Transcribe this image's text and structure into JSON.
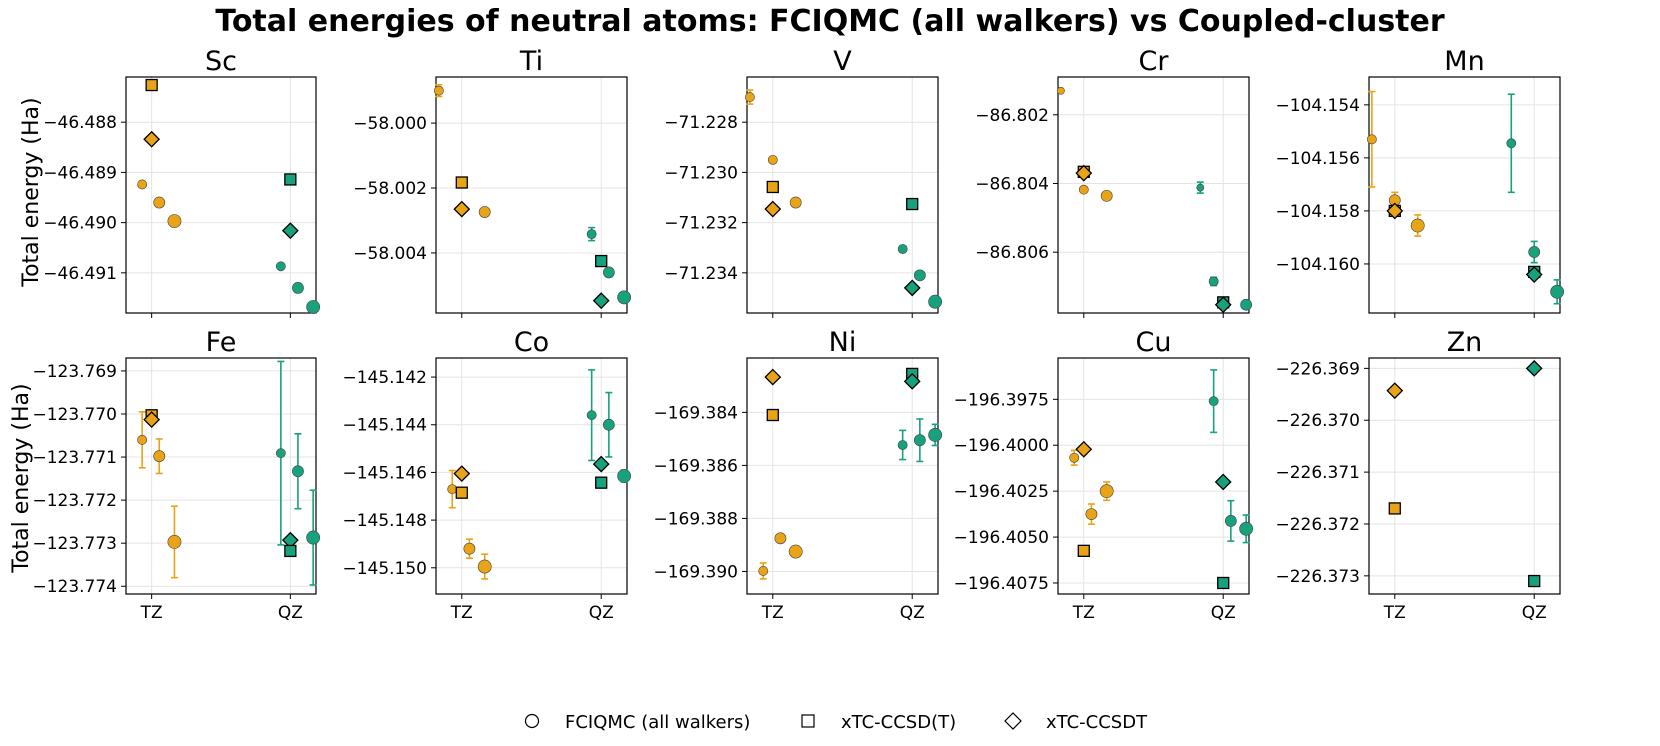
{
  "title": "Total energies of neutral atoms: FCIQMC (all walkers) vs Coupled-cluster",
  "ylabel": "Total energy (Ha)",
  "colors": {
    "TZ": "#E8A317",
    "QZ": "#17A17D"
  },
  "legend": [
    {
      "label": "FCIQMC (all walkers)",
      "marker": "circle"
    },
    {
      "label": "xTC-CCSD(T)",
      "marker": "square"
    },
    {
      "label": "xTC-CCSDT",
      "marker": "diamond"
    }
  ],
  "chart_data": [
    {
      "type": "scatter",
      "title": "Sc",
      "categories": [
        "TZ",
        "QZ"
      ],
      "ylim": [
        -46.4918,
        -46.4871
      ],
      "yticks": [
        -46.488,
        -46.489,
        -46.49,
        -46.491
      ],
      "tick_labels": [
        "−46.488",
        "−46.489",
        "−46.490",
        "−46.491"
      ],
      "points": [
        {
          "basis": "TZ",
          "method": "fciqmc",
          "x_offset": -0.05,
          "y": -46.48924,
          "size": "small"
        },
        {
          "basis": "TZ",
          "method": "fciqmc",
          "x_offset": 0.04,
          "y": -46.4896,
          "size": "medium"
        },
        {
          "basis": "TZ",
          "method": "fciqmc",
          "x_offset": 0.12,
          "y": -46.48997,
          "size": "large"
        },
        {
          "basis": "TZ",
          "method": "ccsd_t",
          "x_offset": 0.0,
          "y": -46.48726
        },
        {
          "basis": "TZ",
          "method": "ccsdt",
          "x_offset": 0.0,
          "y": -46.48834
        },
        {
          "basis": "QZ",
          "method": "fciqmc",
          "x_offset": -0.05,
          "y": -46.49087,
          "size": "small"
        },
        {
          "basis": "QZ",
          "method": "fciqmc",
          "x_offset": 0.04,
          "y": -46.4913,
          "size": "medium"
        },
        {
          "basis": "QZ",
          "method": "fciqmc",
          "x_offset": 0.12,
          "y": -46.49168,
          "size": "large"
        },
        {
          "basis": "QZ",
          "method": "ccsd_t",
          "x_offset": 0.0,
          "y": -46.48914
        },
        {
          "basis": "QZ",
          "method": "ccsdt",
          "x_offset": 0.0,
          "y": -46.49016
        }
      ]
    },
    {
      "type": "scatter",
      "title": "Ti",
      "categories": [
        "TZ",
        "QZ"
      ],
      "ylim": [
        -58.00585,
        -57.99858
      ],
      "yticks": [
        -58.0,
        -58.002,
        -58.004
      ],
      "tick_labels": [
        "−58.000",
        "−58.002",
        "−58.004"
      ],
      "points": [
        {
          "basis": "TZ",
          "method": "fciqmc",
          "x_offset": -0.12,
          "y": -57.999,
          "err": 0.00018,
          "size": "small"
        },
        {
          "basis": "TZ",
          "method": "ccsd_t",
          "x_offset": 0.0,
          "y": -58.00183
        },
        {
          "basis": "TZ",
          "method": "ccsdt",
          "x_offset": 0.0,
          "y": -58.00265
        },
        {
          "basis": "TZ",
          "method": "fciqmc",
          "x_offset": 0.12,
          "y": -58.00274,
          "size": "medium"
        },
        {
          "basis": "QZ",
          "method": "fciqmc",
          "x_offset": -0.05,
          "y": -58.00342,
          "err": 0.0002,
          "size": "small"
        },
        {
          "basis": "QZ",
          "method": "ccsd_t",
          "x_offset": 0.0,
          "y": -58.00425
        },
        {
          "basis": "QZ",
          "method": "fciqmc",
          "x_offset": 0.04,
          "y": -58.0046,
          "size": "medium"
        },
        {
          "basis": "QZ",
          "method": "ccsdt",
          "x_offset": 0.0,
          "y": -58.00547
        },
        {
          "basis": "QZ",
          "method": "fciqmc",
          "x_offset": 0.12,
          "y": -58.00537,
          "size": "large"
        }
      ]
    },
    {
      "type": "scatter",
      "title": "V",
      "categories": [
        "TZ",
        "QZ"
      ],
      "ylim": [
        -71.2356,
        -71.2262
      ],
      "yticks": [
        -71.228,
        -71.23,
        -71.232,
        -71.234
      ],
      "tick_labels": [
        "−71.228",
        "−71.230",
        "−71.232",
        "−71.234"
      ],
      "points": [
        {
          "basis": "TZ",
          "method": "fciqmc",
          "x_offset": -0.12,
          "y": -71.227,
          "err": 0.00028,
          "size": "small"
        },
        {
          "basis": "TZ",
          "method": "fciqmc",
          "x_offset": 0.0,
          "y": -71.2295,
          "size": "small"
        },
        {
          "basis": "TZ",
          "method": "ccsd_t",
          "x_offset": 0.0,
          "y": -71.23058
        },
        {
          "basis": "TZ",
          "method": "fciqmc",
          "x_offset": 0.12,
          "y": -71.2312,
          "size": "medium"
        },
        {
          "basis": "TZ",
          "method": "ccsdt",
          "x_offset": 0.0,
          "y": -71.23146
        },
        {
          "basis": "QZ",
          "method": "ccsd_t",
          "x_offset": 0.0,
          "y": -71.23126
        },
        {
          "basis": "QZ",
          "method": "fciqmc",
          "x_offset": -0.05,
          "y": -71.23305,
          "size": "small"
        },
        {
          "basis": "QZ",
          "method": "fciqmc",
          "x_offset": 0.04,
          "y": -71.2341,
          "size": "medium"
        },
        {
          "basis": "QZ",
          "method": "ccsdt",
          "x_offset": 0.0,
          "y": -71.2346
        },
        {
          "basis": "QZ",
          "method": "fciqmc",
          "x_offset": 0.12,
          "y": -71.23515,
          "size": "large"
        }
      ]
    },
    {
      "type": "scatter",
      "title": "Cr",
      "categories": [
        "TZ",
        "QZ"
      ],
      "ylim": [
        -86.80777,
        -86.8009
      ],
      "yticks": [
        -86.802,
        -86.804,
        -86.806
      ],
      "tick_labels": [
        "−86.802",
        "−86.804",
        "−86.806"
      ],
      "points": [
        {
          "basis": "TZ",
          "method": "fciqmc",
          "x_offset": -0.12,
          "y": -86.8013,
          "size": "tiny"
        },
        {
          "basis": "TZ",
          "method": "ccsd_t",
          "x_offset": 0.0,
          "y": -86.80366
        },
        {
          "basis": "TZ",
          "method": "ccsdt",
          "x_offset": 0.0,
          "y": -86.8037
        },
        {
          "basis": "TZ",
          "method": "fciqmc",
          "x_offset": 0.0,
          "y": -86.80418,
          "size": "small"
        },
        {
          "basis": "TZ",
          "method": "fciqmc",
          "x_offset": 0.12,
          "y": -86.80436,
          "size": "medium"
        },
        {
          "basis": "QZ",
          "method": "fciqmc",
          "x_offset": -0.12,
          "y": -86.80412,
          "err": 0.00016,
          "size": "tiny"
        },
        {
          "basis": "QZ",
          "method": "fciqmc",
          "x_offset": -0.05,
          "y": -86.80685,
          "err": 0.00012,
          "size": "small"
        },
        {
          "basis": "QZ",
          "method": "ccsd_t",
          "x_offset": 0.0,
          "y": -86.80746
        },
        {
          "basis": "QZ",
          "method": "ccsdt",
          "x_offset": 0.0,
          "y": -86.80753
        },
        {
          "basis": "QZ",
          "method": "fciqmc",
          "x_offset": 0.12,
          "y": -86.80753,
          "size": "medium"
        }
      ]
    },
    {
      "type": "scatter",
      "title": "Mn",
      "categories": [
        "TZ",
        "QZ"
      ],
      "ylim": [
        -104.16185,
        -104.15295
      ],
      "yticks": [
        -104.154,
        -104.156,
        -104.158,
        -104.16
      ],
      "tick_labels": [
        "−104.154",
        "−104.156",
        "−104.158",
        "−104.160"
      ],
      "points": [
        {
          "basis": "TZ",
          "method": "fciqmc",
          "x_offset": -0.12,
          "y": -104.1553,
          "err": 0.0018,
          "size": "small"
        },
        {
          "basis": "TZ",
          "method": "fciqmc",
          "x_offset": 0.0,
          "y": -104.1576,
          "err": 0.0003,
          "size": "medium"
        },
        {
          "basis": "TZ",
          "method": "ccsd_t",
          "x_offset": 0.0,
          "y": -104.158
        },
        {
          "basis": "TZ",
          "method": "ccsdt",
          "x_offset": 0.0,
          "y": -104.158
        },
        {
          "basis": "TZ",
          "method": "fciqmc",
          "x_offset": 0.12,
          "y": -104.15855,
          "err": 0.0004,
          "size": "large"
        },
        {
          "basis": "QZ",
          "method": "fciqmc",
          "x_offset": -0.12,
          "y": -104.15545,
          "err": 0.00185,
          "size": "small"
        },
        {
          "basis": "QZ",
          "method": "fciqmc",
          "x_offset": 0.0,
          "y": -104.15955,
          "err": 0.0004,
          "size": "medium"
        },
        {
          "basis": "QZ",
          "method": "ccsd_t",
          "x_offset": 0.0,
          "y": -104.1603
        },
        {
          "basis": "QZ",
          "method": "ccsdt",
          "x_offset": 0.0,
          "y": -104.1604
        },
        {
          "basis": "QZ",
          "method": "fciqmc",
          "x_offset": 0.12,
          "y": -104.16105,
          "err": 0.00045,
          "size": "large"
        }
      ]
    },
    {
      "type": "scatter",
      "title": "Fe",
      "categories": [
        "TZ",
        "QZ"
      ],
      "ylim": [
        -123.77418,
        -123.7687
      ],
      "yticks": [
        -123.769,
        -123.77,
        -123.771,
        -123.772,
        -123.773,
        -123.774
      ],
      "tick_labels": [
        "−123.769",
        "−123.770",
        "−123.771",
        "−123.772",
        "−123.773",
        "−123.774"
      ],
      "points": [
        {
          "basis": "TZ",
          "method": "fciqmc",
          "x_offset": -0.05,
          "y": -123.7706,
          "err": 0.00065,
          "size": "small"
        },
        {
          "basis": "TZ",
          "method": "ccsd_t",
          "x_offset": 0.0,
          "y": -123.77003
        },
        {
          "basis": "TZ",
          "method": "ccsdt",
          "x_offset": 0.0,
          "y": -123.77013
        },
        {
          "basis": "TZ",
          "method": "fciqmc",
          "x_offset": 0.04,
          "y": -123.77098,
          "err": 0.0004,
          "size": "medium"
        },
        {
          "basis": "TZ",
          "method": "fciqmc",
          "x_offset": 0.12,
          "y": -123.77297,
          "err": 0.00083,
          "size": "large"
        },
        {
          "basis": "QZ",
          "method": "fciqmc",
          "x_offset": -0.05,
          "y": -123.77091,
          "err": 0.00213,
          "size": "small"
        },
        {
          "basis": "QZ",
          "method": "fciqmc",
          "x_offset": 0.04,
          "y": -123.77133,
          "err": 0.00087,
          "size": "medium"
        },
        {
          "basis": "QZ",
          "method": "ccsdt",
          "x_offset": 0.0,
          "y": -123.77293
        },
        {
          "basis": "QZ",
          "method": "ccsd_t",
          "x_offset": 0.0,
          "y": -123.77318
        },
        {
          "basis": "QZ",
          "method": "fciqmc",
          "x_offset": 0.12,
          "y": -123.77287,
          "err": 0.0011,
          "size": "large"
        }
      ]
    },
    {
      "type": "scatter",
      "title": "Co",
      "categories": [
        "TZ",
        "QZ"
      ],
      "ylim": [
        -145.1511,
        -145.1412
      ],
      "yticks": [
        -145.142,
        -145.144,
        -145.146,
        -145.148,
        -145.15
      ],
      "tick_labels": [
        "−145.142",
        "−145.144",
        "−145.146",
        "−145.148",
        "−145.150"
      ],
      "points": [
        {
          "basis": "TZ",
          "method": "fciqmc",
          "x_offset": -0.05,
          "y": -145.1467,
          "err": 0.00078,
          "size": "small"
        },
        {
          "basis": "TZ",
          "method": "ccsdt",
          "x_offset": 0.0,
          "y": -145.14605
        },
        {
          "basis": "TZ",
          "method": "ccsd_t",
          "x_offset": 0.0,
          "y": -145.14685
        },
        {
          "basis": "TZ",
          "method": "fciqmc",
          "x_offset": 0.04,
          "y": -145.1492,
          "err": 0.0004,
          "size": "medium"
        },
        {
          "basis": "TZ",
          "method": "fciqmc",
          "x_offset": 0.12,
          "y": -145.14995,
          "err": 0.00052,
          "size": "large"
        },
        {
          "basis": "QZ",
          "method": "fciqmc",
          "x_offset": -0.05,
          "y": -145.1436,
          "err": 0.0019,
          "size": "small"
        },
        {
          "basis": "QZ",
          "method": "fciqmc",
          "x_offset": 0.04,
          "y": -145.144,
          "err": 0.00135,
          "size": "medium"
        },
        {
          "basis": "QZ",
          "method": "ccsdt",
          "x_offset": 0.0,
          "y": -145.14565
        },
        {
          "basis": "QZ",
          "method": "ccsd_t",
          "x_offset": 0.0,
          "y": -145.14643
        },
        {
          "basis": "QZ",
          "method": "fciqmc",
          "x_offset": 0.12,
          "y": -145.14615,
          "err": 0.00025,
          "size": "large"
        }
      ]
    },
    {
      "type": "scatter",
      "title": "Ni",
      "categories": [
        "TZ",
        "QZ"
      ],
      "ylim": [
        -169.39085,
        -169.38195
      ],
      "yticks": [
        -169.384,
        -169.386,
        -169.388,
        -169.39
      ],
      "tick_labels": [
        "−169.384",
        "−169.386",
        "−169.388",
        "−169.390"
      ],
      "points": [
        {
          "basis": "TZ",
          "method": "fciqmc",
          "x_offset": -0.05,
          "y": -169.38998,
          "err": 0.0003,
          "size": "small"
        },
        {
          "basis": "TZ",
          "method": "ccsdt",
          "x_offset": 0.0,
          "y": -169.38267
        },
        {
          "basis": "TZ",
          "method": "ccsd_t",
          "x_offset": 0.0,
          "y": -169.3841
        },
        {
          "basis": "TZ",
          "method": "fciqmc",
          "x_offset": 0.04,
          "y": -169.38875,
          "err": 0.00015,
          "size": "medium"
        },
        {
          "basis": "TZ",
          "method": "fciqmc",
          "x_offset": 0.12,
          "y": -169.38925,
          "err": 0.0002,
          "size": "large"
        },
        {
          "basis": "QZ",
          "method": "ccsd_t",
          "x_offset": 0.0,
          "y": -169.38255
        },
        {
          "basis": "QZ",
          "method": "ccsdt",
          "x_offset": 0.0,
          "y": -169.38283
        },
        {
          "basis": "QZ",
          "method": "fciqmc",
          "x_offset": -0.05,
          "y": -169.38523,
          "err": 0.00055,
          "size": "small"
        },
        {
          "basis": "QZ",
          "method": "fciqmc",
          "x_offset": 0.04,
          "y": -169.38505,
          "err": 0.0008,
          "size": "medium"
        },
        {
          "basis": "QZ",
          "method": "fciqmc",
          "x_offset": 0.12,
          "y": -169.38485,
          "err": 0.0004,
          "size": "large"
        }
      ]
    },
    {
      "type": "scatter",
      "title": "Cu",
      "categories": [
        "TZ",
        "QZ"
      ],
      "ylim": [
        -196.4081,
        -196.39525
      ],
      "yticks": [
        -196.3975,
        -196.4,
        -196.4025,
        -196.405,
        -196.4075
      ],
      "tick_labels": [
        "−196.3975",
        "−196.4000",
        "−196.4025",
        "−196.4050",
        "−196.4075"
      ],
      "points": [
        {
          "basis": "TZ",
          "method": "fciqmc",
          "x_offset": -0.05,
          "y": -196.40068,
          "err": 0.0004,
          "size": "small"
        },
        {
          "basis": "TZ",
          "method": "ccsdt",
          "x_offset": 0.0,
          "y": -196.40022
        },
        {
          "basis": "TZ",
          "method": "ccsd_t",
          "x_offset": 0.0,
          "y": -196.40575
        },
        {
          "basis": "TZ",
          "method": "fciqmc",
          "x_offset": 0.04,
          "y": -196.40375,
          "err": 0.00055,
          "size": "medium"
        },
        {
          "basis": "TZ",
          "method": "fciqmc",
          "x_offset": 0.12,
          "y": -196.4025,
          "err": 0.0005,
          "size": "large"
        },
        {
          "basis": "QZ",
          "method": "fciqmc",
          "x_offset": -0.05,
          "y": -196.3976,
          "err": 0.0017,
          "size": "small"
        },
        {
          "basis": "QZ",
          "method": "ccsdt",
          "x_offset": 0.0,
          "y": -196.402
        },
        {
          "basis": "QZ",
          "method": "fciqmc",
          "x_offset": 0.04,
          "y": -196.40412,
          "err": 0.0011,
          "size": "medium"
        },
        {
          "basis": "QZ",
          "method": "fciqmc",
          "x_offset": 0.12,
          "y": -196.40455,
          "err": 0.00075,
          "size": "large"
        },
        {
          "basis": "QZ",
          "method": "ccsd_t",
          "x_offset": 0.0,
          "y": -196.4075
        }
      ]
    },
    {
      "type": "scatter",
      "title": "Zn",
      "categories": [
        "TZ",
        "QZ"
      ],
      "ylim": [
        -226.37335,
        -226.3688
      ],
      "yticks": [
        -226.369,
        -226.37,
        -226.371,
        -226.372,
        -226.373
      ],
      "tick_labels": [
        "−226.369",
        "−226.370",
        "−226.371",
        "−226.372",
        "−226.373"
      ],
      "points": [
        {
          "basis": "TZ",
          "method": "ccsdt",
          "x_offset": 0.0,
          "y": -226.36943
        },
        {
          "basis": "TZ",
          "method": "ccsd_t",
          "x_offset": 0.0,
          "y": -226.3717
        },
        {
          "basis": "QZ",
          "method": "ccsdt",
          "x_offset": 0.0,
          "y": -226.369
        },
        {
          "basis": "QZ",
          "method": "ccsd_t",
          "x_offset": 0.0,
          "y": -226.3731
        }
      ]
    }
  ]
}
